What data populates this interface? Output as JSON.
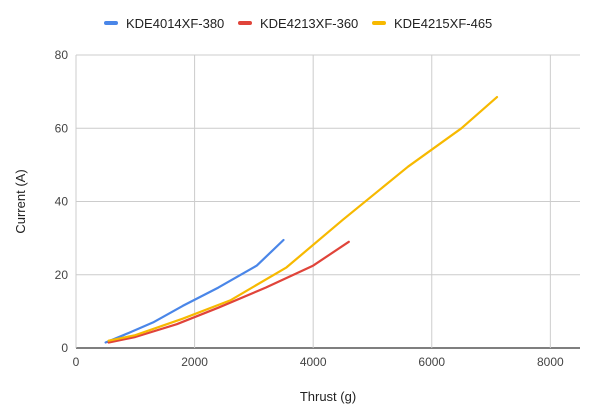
{
  "chart_data": {
    "type": "line",
    "title": "",
    "xlabel": "Thrust (g)",
    "ylabel": "Current (A)",
    "xlim": [
      0,
      8500
    ],
    "ylim": [
      0,
      80
    ],
    "xticks": [
      0,
      2000,
      4000,
      6000,
      8000
    ],
    "yticks": [
      0,
      20,
      40,
      60,
      80
    ],
    "grid": true,
    "legend_position": "top",
    "series": [
      {
        "name": "KDE4014XF-380",
        "color": "#4a86e8",
        "points": [
          [
            500,
            1.5
          ],
          [
            800,
            3.5
          ],
          [
            1300,
            7
          ],
          [
            1800,
            11.5
          ],
          [
            2400,
            16.5
          ],
          [
            3050,
            22.5
          ],
          [
            3500,
            29.5
          ]
        ]
      },
      {
        "name": "KDE4213XF-360",
        "color": "#e0443a",
        "points": [
          [
            550,
            1.5
          ],
          [
            1000,
            3
          ],
          [
            1700,
            6.5
          ],
          [
            2400,
            11
          ],
          [
            3200,
            16.5
          ],
          [
            4000,
            22.5
          ],
          [
            4600,
            29
          ]
        ]
      },
      {
        "name": "KDE4215XF-465",
        "color": "#f7b900",
        "points": [
          [
            550,
            2
          ],
          [
            1000,
            3.5
          ],
          [
            1800,
            8
          ],
          [
            2600,
            13
          ],
          [
            3550,
            22
          ],
          [
            4500,
            35
          ],
          [
            5600,
            49.5
          ],
          [
            6500,
            60
          ],
          [
            7100,
            68.5
          ]
        ]
      }
    ]
  }
}
